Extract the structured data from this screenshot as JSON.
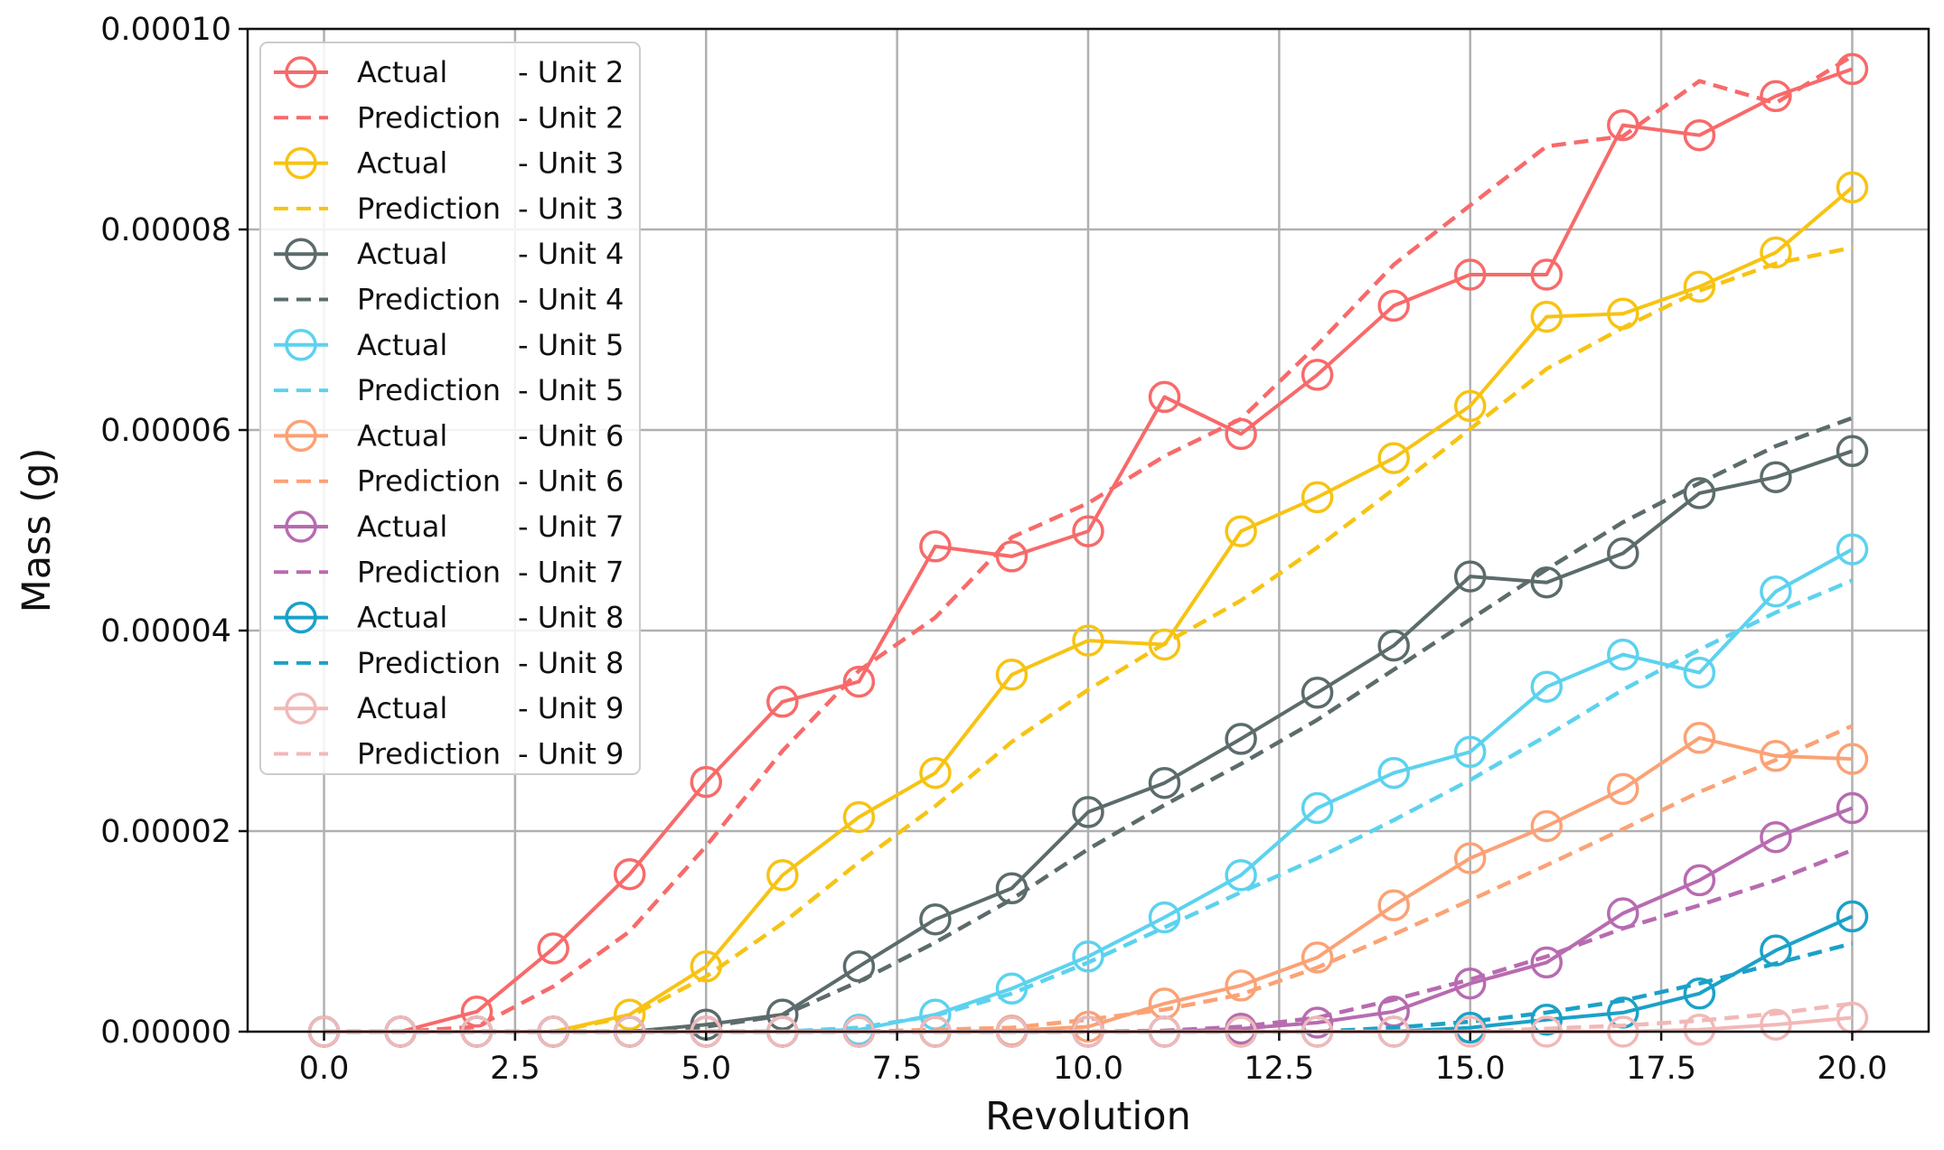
{
  "chart_data": {
    "type": "line",
    "title": "",
    "xlabel": "Revolution",
    "ylabel": "Mass (g)",
    "xlim": [
      -1.0,
      21.0
    ],
    "ylim": [
      0.0,
      0.0001
    ],
    "xticks": [
      0.0,
      2.5,
      5.0,
      7.5,
      10.0,
      12.5,
      15.0,
      17.5,
      20.0
    ],
    "xtick_labels": [
      "0.0",
      "2.5",
      "5.0",
      "7.5",
      "10.0",
      "12.5",
      "15.0",
      "17.5",
      "20.0"
    ],
    "yticks": [
      0,
      2e-05,
      4e-05,
      6e-05,
      8e-05,
      0.0001
    ],
    "ytick_labels": [
      "0.00000",
      "0.00002",
      "0.00004",
      "0.00006",
      "0.00008",
      "0.00010"
    ],
    "grid": true,
    "legend_position": "top-left",
    "x": [
      0,
      1,
      2,
      3,
      4,
      5,
      6,
      7,
      8,
      9,
      10,
      11,
      12,
      13,
      14,
      15,
      16,
      17,
      18,
      19,
      20
    ],
    "series": [
      {
        "name": "Actual",
        "unit": "- Unit 2",
        "style": "actual",
        "color": "#f86a6a",
        "values": [
          0,
          0,
          2e-06,
          8.3e-06,
          1.57e-05,
          2.49e-05,
          3.29e-05,
          3.49e-05,
          4.84e-05,
          4.74e-05,
          4.99e-05,
          6.33e-05,
          5.96e-05,
          6.55e-05,
          7.24e-05,
          7.55e-05,
          7.55e-05,
          9.04e-05,
          8.94e-05,
          9.33e-05,
          9.6e-05
        ]
      },
      {
        "name": "Prediction",
        "unit": "- Unit 2",
        "style": "prediction",
        "color": "#f86a6a",
        "values": [
          0,
          0,
          5e-07,
          4.5e-06,
          1e-05,
          1.85e-05,
          2.8e-05,
          3.6e-05,
          4.13e-05,
          4.93e-05,
          5.27e-05,
          5.74e-05,
          6.11e-05,
          6.85e-05,
          7.65e-05,
          8.24e-05,
          8.83e-05,
          8.93e-05,
          9.48e-05,
          9.26e-05,
          9.73e-05
        ]
      },
      {
        "name": "Actual",
        "unit": "- Unit 3",
        "style": "actual",
        "color": "#f7c313",
        "values": [
          0,
          0,
          0,
          0,
          1.7e-06,
          6.5e-06,
          1.56e-05,
          2.14e-05,
          2.58e-05,
          3.56e-05,
          3.9e-05,
          3.86e-05,
          4.99e-05,
          5.33e-05,
          5.72e-05,
          6.24e-05,
          7.13e-05,
          7.16e-05,
          7.43e-05,
          7.77e-05,
          8.42e-05
        ]
      },
      {
        "name": "Prediction",
        "unit": "- Unit 3",
        "style": "prediction",
        "color": "#f7c313",
        "values": [
          0,
          0,
          0,
          0,
          1.5e-06,
          5.5e-06,
          1.08e-05,
          1.69e-05,
          2.25e-05,
          2.89e-05,
          3.41e-05,
          3.87e-05,
          4.3e-05,
          4.83e-05,
          5.41e-05,
          6.01e-05,
          6.61e-05,
          7.02e-05,
          7.39e-05,
          7.66e-05,
          7.82e-05
        ]
      },
      {
        "name": "Actual",
        "unit": "- Unit 4",
        "style": "actual",
        "color": "#5c6b6b",
        "values": [
          0,
          0,
          0,
          0,
          0,
          7e-07,
          1.7e-06,
          6.5e-06,
          1.12e-05,
          1.43e-05,
          2.19e-05,
          2.48e-05,
          2.92e-05,
          3.38e-05,
          3.85e-05,
          4.54e-05,
          4.48e-05,
          4.77e-05,
          5.37e-05,
          5.53e-05,
          5.79e-05
        ]
      },
      {
        "name": "Prediction",
        "unit": "- Unit 4",
        "style": "prediction",
        "color": "#5c6b6b",
        "values": [
          0,
          0,
          0,
          0,
          0,
          5e-07,
          1.6e-06,
          5e-06,
          8.9e-06,
          1.32e-05,
          1.82e-05,
          2.26e-05,
          2.67e-05,
          3.11e-05,
          3.61e-05,
          4.11e-05,
          4.61e-05,
          5.08e-05,
          5.47e-05,
          5.84e-05,
          6.12e-05
        ]
      },
      {
        "name": "Actual",
        "unit": "- Unit 5",
        "style": "actual",
        "color": "#5cd2ef",
        "values": [
          0,
          0,
          0,
          0,
          0,
          0,
          0,
          2e-07,
          1.7e-06,
          4.3e-06,
          7.5e-06,
          1.14e-05,
          1.56e-05,
          2.23e-05,
          2.58e-05,
          2.79e-05,
          3.44e-05,
          3.76e-05,
          3.58e-05,
          4.39e-05,
          4.81e-05
        ]
      },
      {
        "name": "Prediction",
        "unit": "- Unit 5",
        "style": "prediction",
        "color": "#5cd2ef",
        "values": [
          0,
          0,
          0,
          0,
          0,
          0,
          0,
          4e-07,
          1.6e-06,
          3.8e-06,
          6.9e-06,
          1.04e-05,
          1.39e-05,
          1.73e-05,
          2.11e-05,
          2.51e-05,
          2.95e-05,
          3.41e-05,
          3.81e-05,
          4.18e-05,
          4.5e-05
        ]
      },
      {
        "name": "Actual",
        "unit": "- Unit 6",
        "style": "actual",
        "color": "#fba275",
        "values": [
          0,
          0,
          0,
          0,
          0,
          0,
          0,
          0,
          0,
          1e-07,
          5e-07,
          2.8e-06,
          4.6e-06,
          7.4e-06,
          1.26e-05,
          1.73e-05,
          2.05e-05,
          2.42e-05,
          2.93e-05,
          2.75e-05,
          2.72e-05
        ]
      },
      {
        "name": "Prediction",
        "unit": "- Unit 6",
        "style": "prediction",
        "color": "#fba275",
        "values": [
          0,
          0,
          0,
          0,
          0,
          0,
          0,
          0,
          2e-07,
          4e-07,
          1.2e-06,
          2.2e-06,
          3.7e-06,
          6.4e-06,
          9.7e-06,
          1.31e-05,
          1.66e-05,
          2.02e-05,
          2.39e-05,
          2.71e-05,
          3.05e-05
        ]
      },
      {
        "name": "Actual",
        "unit": "- Unit 7",
        "style": "actual",
        "color": "#b86bb0",
        "values": [
          0,
          0,
          0,
          0,
          0,
          0,
          0,
          0,
          0,
          0,
          0,
          0,
          3e-07,
          9e-07,
          2e-06,
          4.8e-06,
          6.9e-06,
          1.18e-05,
          1.51e-05,
          1.94e-05,
          2.23e-05
        ]
      },
      {
        "name": "Prediction",
        "unit": "- Unit 7",
        "style": "prediction",
        "color": "#b86bb0",
        "values": [
          0,
          0,
          0,
          0,
          0,
          0,
          0,
          0,
          0,
          0,
          0,
          1e-07,
          5e-07,
          1.4e-06,
          3.2e-06,
          5.2e-06,
          7.5e-06,
          1.03e-05,
          1.26e-05,
          1.51e-05,
          1.81e-05
        ]
      },
      {
        "name": "Actual",
        "unit": "- Unit 8",
        "style": "actual",
        "color": "#1ba1c8",
        "values": [
          0,
          0,
          0,
          0,
          0,
          0,
          0,
          0,
          0,
          0,
          0,
          0,
          0,
          0,
          0,
          4e-07,
          1.2e-06,
          1.9e-06,
          3.8e-06,
          8.1e-06,
          1.15e-05
        ]
      },
      {
        "name": "Prediction",
        "unit": "- Unit 8",
        "style": "prediction",
        "color": "#1ba1c8",
        "values": [
          0,
          0,
          0,
          0,
          0,
          0,
          0,
          0,
          0,
          0,
          0,
          0,
          0,
          0,
          4e-07,
          1e-06,
          1.9e-06,
          3.1e-06,
          4.8e-06,
          6.8e-06,
          8.8e-06
        ]
      },
      {
        "name": "Actual",
        "unit": "- Unit 9",
        "style": "actual",
        "color": "#f2b8b8",
        "values": [
          0,
          0,
          0,
          0,
          0,
          0,
          0,
          0,
          0,
          0,
          0,
          0,
          0,
          0,
          0,
          0,
          0,
          0,
          2e-07,
          7e-07,
          1.4e-06
        ]
      },
      {
        "name": "Prediction",
        "unit": "- Unit 9",
        "style": "prediction",
        "color": "#f2b8b8",
        "values": [
          0,
          0,
          0,
          0,
          0,
          0,
          0,
          0,
          0,
          0,
          0,
          0,
          0,
          0,
          0,
          0,
          3e-07,
          6e-07,
          1.1e-06,
          1.8e-06,
          2.8e-06
        ]
      }
    ]
  }
}
